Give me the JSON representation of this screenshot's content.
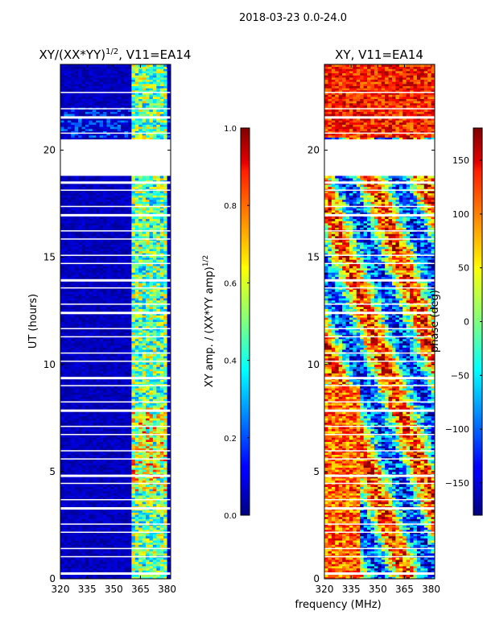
{
  "figure": {
    "suptitle": "2018-03-23 0.0-24.0",
    "xlabel": "frequency (MHz)"
  },
  "chart_data": [
    {
      "type": "heatmap",
      "title_base": "XY/(XX*YY)",
      "title_exp": "1/2",
      "title_suffix": ", V11=EA14",
      "xlabel": "",
      "ylabel": "UT (hours)",
      "xlim": [
        320,
        382
      ],
      "ylim": [
        0,
        24
      ],
      "x_ticks": [
        320,
        335,
        350,
        365,
        380
      ],
      "y_ticks": [
        0,
        5,
        10,
        15,
        20
      ],
      "colormap": "jet",
      "colorbar": {
        "label_base": "XY amp. / (XX*YY amp)",
        "label_exp": "1/2",
        "range": [
          0.0,
          1.0
        ],
        "ticks": [
          "0.0",
          "0.2",
          "0.4",
          "0.6",
          "0.8",
          "1.0"
        ],
        "tick_values": [
          0.0,
          0.2,
          0.4,
          0.6,
          0.8,
          1.0
        ]
      },
      "data_gap_hours": [
        20.5,
        18.9
      ],
      "high_amplitude_band_mhz": [
        360,
        380
      ],
      "background_value": 0.02
    },
    {
      "type": "heatmap",
      "title": "XY, V11=EA14",
      "xlabel": "",
      "ylabel": "",
      "xlim": [
        320,
        382
      ],
      "ylim": [
        0,
        24
      ],
      "x_ticks": [
        320,
        335,
        350,
        365,
        380
      ],
      "y_ticks": [
        0,
        5,
        10,
        15,
        20
      ],
      "colormap": "jet",
      "colorbar": {
        "label": "phase (deg)",
        "range": [
          -180,
          180
        ],
        "ticks": [
          "−150",
          "−100",
          "−50",
          "0",
          "50",
          "100",
          "150"
        ],
        "tick_values": [
          -150,
          -100,
          -50,
          0,
          50,
          100,
          150
        ]
      },
      "data_gap_hours": [
        20.5,
        18.9
      ]
    }
  ]
}
